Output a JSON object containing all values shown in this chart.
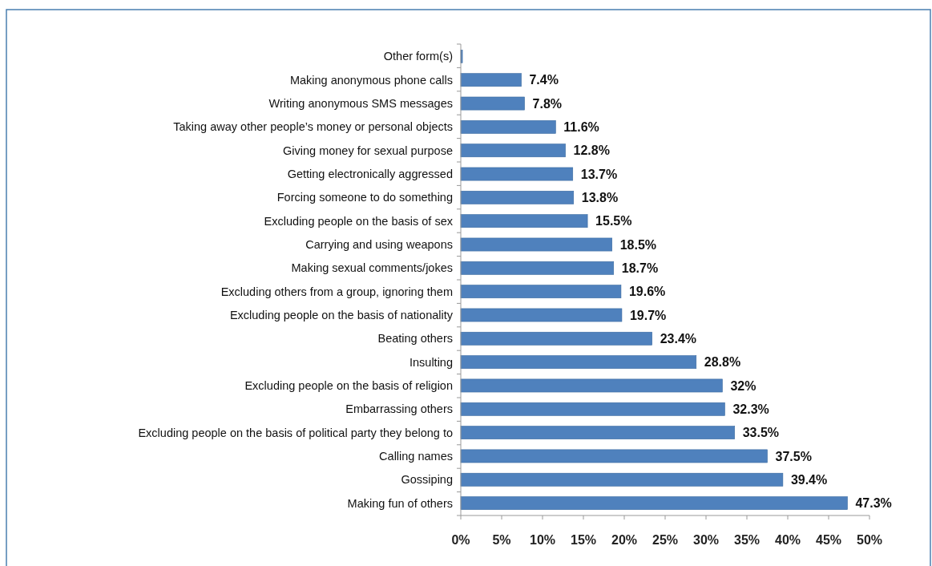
{
  "chart_data": {
    "type": "bar",
    "orientation": "horizontal",
    "categories": [
      "Other form(s)",
      "Making anonymous phone calls",
      "Writing anonymous SMS messages",
      "Taking away other people’s money or personal objects",
      "Giving money for sexual purpose",
      "Getting electronically aggressed",
      "Forcing someone to do something",
      "Excluding people on the basis of sex",
      "Carrying and using weapons",
      "Making sexual comments/jokes",
      "Excluding others from a group, ignoring them",
      "Excluding people on the basis of nationality",
      "Beating others",
      "Insulting",
      "Excluding people on the basis of religion",
      "Embarrassing others",
      "Excluding people on the basis of political party they belong to",
      "Calling names",
      "Gossiping",
      "Making fun of others"
    ],
    "values": [
      0.2,
      7.4,
      7.8,
      11.6,
      12.8,
      13.7,
      13.8,
      15.5,
      18.5,
      18.7,
      19.6,
      19.7,
      23.4,
      28.8,
      32,
      32.3,
      33.5,
      37.5,
      39.4,
      47.3
    ],
    "value_labels": [
      null,
      "7.4%",
      "7.8%",
      "11.6%",
      "12.8%",
      "13.7%",
      "13.8%",
      "15.5%",
      "18.5%",
      "18.7%",
      "19.6%",
      "19.7%",
      "23.4%",
      "28.8%",
      "32%",
      "32.3%",
      "33.5%",
      "37.5%",
      "39.4%",
      "47.3%"
    ],
    "color": "#4f81bd",
    "xlim": [
      0,
      50
    ],
    "xticks": [
      {
        "value": 0,
        "label": "0%"
      },
      {
        "value": 5,
        "label": "5%"
      },
      {
        "value": 10,
        "label": "10%"
      },
      {
        "value": 15,
        "label": "15%"
      },
      {
        "value": 20,
        "label": "20%"
      },
      {
        "value": 25,
        "label": "25%"
      },
      {
        "value": 30,
        "label": "30%"
      },
      {
        "value": 35,
        "label": "35%"
      },
      {
        "value": 40,
        "label": "40%"
      },
      {
        "value": 45,
        "label": "45%"
      },
      {
        "value": 50,
        "label": "50%"
      }
    ],
    "grid": false
  }
}
